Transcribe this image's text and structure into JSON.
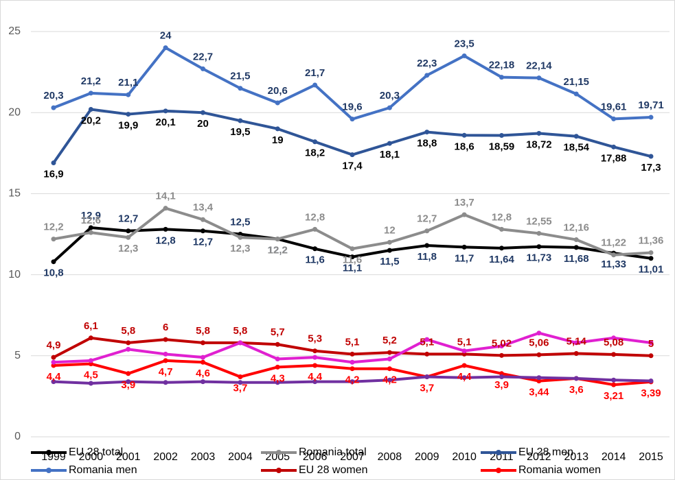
{
  "chart_data": {
    "type": "line",
    "categories": [
      "1999",
      "2000",
      "2001",
      "2002",
      "2003",
      "2004",
      "2005",
      "2006",
      "2007",
      "2008",
      "2009",
      "2010",
      "2011",
      "2012",
      "2013",
      "2014",
      "2015"
    ],
    "ylim": [
      0,
      25
    ],
    "yticks": [
      0,
      5,
      10,
      15,
      20,
      25
    ],
    "grid": true,
    "legend": "bottom",
    "series": [
      {
        "name": "EU 28 total",
        "color": "#000000",
        "label_color": "#1f3864",
        "values": [
          10.8,
          12.9,
          12.7,
          12.8,
          12.7,
          12.5,
          12.2,
          11.6,
          11.1,
          11.5,
          11.8,
          11.7,
          11.64,
          11.73,
          11.68,
          11.33,
          11.01
        ],
        "value_labels": [
          "10,8",
          "12,9",
          "12,7",
          "12,8",
          "12,7",
          "12,5",
          "12,2",
          "11,6",
          "11,1",
          "11,5",
          "11,8",
          "11,7",
          "11,64",
          "11,73",
          "11,68",
          "11,33",
          "11,01"
        ]
      },
      {
        "name": "Romania total",
        "color": "#8c8c8c",
        "label_color": "#8c8c8c",
        "values": [
          12.2,
          12.6,
          12.3,
          14.1,
          13.4,
          12.3,
          12.2,
          12.8,
          11.6,
          12,
          12.7,
          13.7,
          12.8,
          12.55,
          12.16,
          11.22,
          11.36
        ],
        "value_labels": [
          "12,2",
          "12,6",
          "12,3",
          "14,1",
          "13,4",
          "12,3",
          "12,2",
          "12,8",
          "11,6",
          "12",
          "12,7",
          "13,7",
          "12,8",
          "12,55",
          "12,16",
          "11,22",
          "11,36"
        ]
      },
      {
        "name": "EU 28 men",
        "color": "#2f5597",
        "label_color": "#000000",
        "values": [
          16.9,
          20.2,
          19.9,
          20.1,
          20,
          19.5,
          19,
          18.2,
          17.4,
          18.1,
          18.8,
          18.6,
          18.59,
          18.72,
          18.54,
          17.88,
          17.3
        ],
        "value_labels": [
          "16,9",
          "20,2",
          "19,9",
          "20,1",
          "20",
          "19,5",
          "19",
          "18,2",
          "17,4",
          "18,1",
          "18,8",
          "18,6",
          "18,59",
          "18,72",
          "18,54",
          "17,88",
          "17,3"
        ]
      },
      {
        "name": "Romania men",
        "color": "#4472c4",
        "label_color": "#1f3864",
        "values": [
          20.3,
          21.2,
          21.1,
          24,
          22.7,
          21.5,
          20.6,
          21.7,
          19.6,
          20.3,
          22.3,
          23.5,
          22.18,
          22.14,
          21.15,
          19.61,
          19.71
        ],
        "value_labels": [
          "20,3",
          "21,2",
          "21,1",
          "24",
          "22,7",
          "21,5",
          "20,6",
          "21,7",
          "19,6",
          "20,3",
          "22,3",
          "23,5",
          "22,18",
          "22,14",
          "21,15",
          "19,61",
          "19,71"
        ]
      },
      {
        "name": "EU 28 women",
        "color": "#c00000",
        "label_color": "#c00000",
        "values": [
          4.9,
          6.1,
          5.8,
          6,
          5.8,
          5.8,
          5.7,
          5.3,
          5.1,
          5.2,
          5.1,
          5.1,
          5.02,
          5.06,
          5.14,
          5.08,
          5
        ],
        "value_labels": [
          "4,9",
          "6,1",
          "5,8",
          "6",
          "5,8",
          "5,8",
          "5,7",
          "5,3",
          "5,1",
          "5,2",
          "5,1",
          "5,1",
          "5,02",
          "5,06",
          "5,14",
          "5,08",
          "5"
        ]
      },
      {
        "name": "Romania women",
        "color": "#ff0000",
        "label_color": "#ff0000",
        "values": [
          4.4,
          4.5,
          3.9,
          4.7,
          4.6,
          3.7,
          4.3,
          4.4,
          4.2,
          4.2,
          3.7,
          4.4,
          3.9,
          3.44,
          3.6,
          3.21,
          3.39
        ],
        "value_labels": [
          "4,4",
          "4,5",
          "3,9",
          "4,7",
          "4,6",
          "3,7",
          "4,3",
          "4,4",
          "4,2",
          "4,2",
          "3,7",
          "4,4",
          "3,9",
          "3,44",
          "3,6",
          "3,21",
          "3,39"
        ]
      },
      {
        "color": "#e020d0",
        "values": [
          4.6,
          4.7,
          5.4,
          5.1,
          4.9,
          5.8,
          4.8,
          4.9,
          4.6,
          4.8,
          6,
          5.3,
          5.6,
          6.4,
          5.8,
          6.1,
          5.8
        ]
      },
      {
        "color": "#7030a0",
        "values": [
          3.4,
          3.3,
          3.4,
          3.35,
          3.4,
          3.35,
          3.35,
          3.4,
          3.4,
          3.5,
          3.7,
          3.65,
          3.7,
          3.65,
          3.6,
          3.5,
          3.45
        ]
      }
    ]
  }
}
